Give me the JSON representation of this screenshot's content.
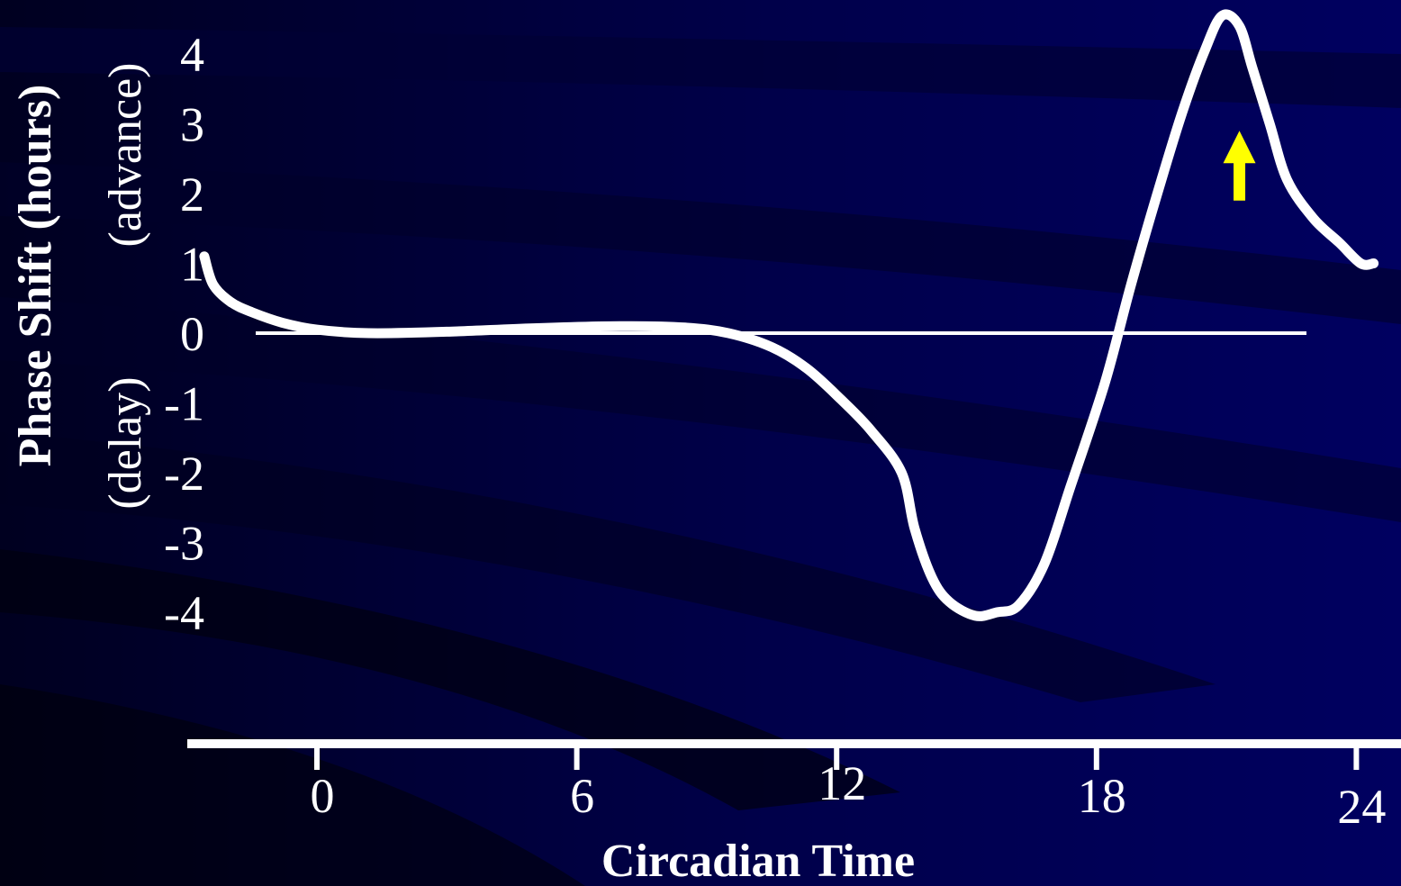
{
  "chart_data": {
    "type": "line",
    "title": "",
    "xlabel": "Circadian Time",
    "ylabel": "Phase Shift (hours)",
    "y_direction_labels": {
      "positive": "(advance)",
      "negative": "(delay)"
    },
    "x_ticks": [
      0,
      6,
      12,
      18,
      24
    ],
    "x_tick_labels": [
      "0",
      "6",
      "12",
      "18",
      "24"
    ],
    "y_ticks": [
      4,
      3,
      2,
      1,
      0,
      -1,
      -2,
      -3,
      -4
    ],
    "y_tick_labels": [
      "4",
      "3",
      "2",
      "1",
      "0",
      "-1",
      "-2",
      "-3",
      "-4"
    ],
    "xlim": [
      -3,
      25
    ],
    "ylim": [
      -4,
      4
    ],
    "grid": false,
    "series": [
      {
        "x": [
          -2.6,
          -2.4,
          -2.0,
          -1.5,
          -0.8,
          0,
          1.2,
          3,
          5,
          7,
          8.5,
          9.5,
          10.5,
          11.3,
          12.1,
          12.8,
          13.5,
          13.8,
          14.2,
          14.6,
          15.2,
          15.7,
          16.2,
          16.8,
          17.4,
          18.2,
          18.8,
          19.5,
          20.0,
          20.5,
          20.9,
          21.3,
          21.6,
          22.0,
          22.4,
          23.0,
          23.6,
          24.1,
          24.4
        ],
        "y": [
          1.1,
          0.7,
          0.45,
          0.3,
          0.15,
          0.05,
          0.0,
          0.02,
          0.07,
          0.1,
          0.08,
          0.0,
          -0.2,
          -0.5,
          -0.95,
          -1.4,
          -2.0,
          -2.8,
          -3.5,
          -3.85,
          -4.05,
          -4.0,
          -3.9,
          -3.3,
          -2.2,
          -0.7,
          0.7,
          2.2,
          3.2,
          4.05,
          4.55,
          4.4,
          3.8,
          3.0,
          2.2,
          1.65,
          1.3,
          1.0,
          1.0
        ],
        "color": "#ffffff"
      }
    ],
    "zero_line": true,
    "annotation": {
      "type": "arrow",
      "direction": "up",
      "x": 21.3,
      "y_from": 1.9,
      "y_to": 2.9,
      "color": "#ffff00"
    }
  }
}
